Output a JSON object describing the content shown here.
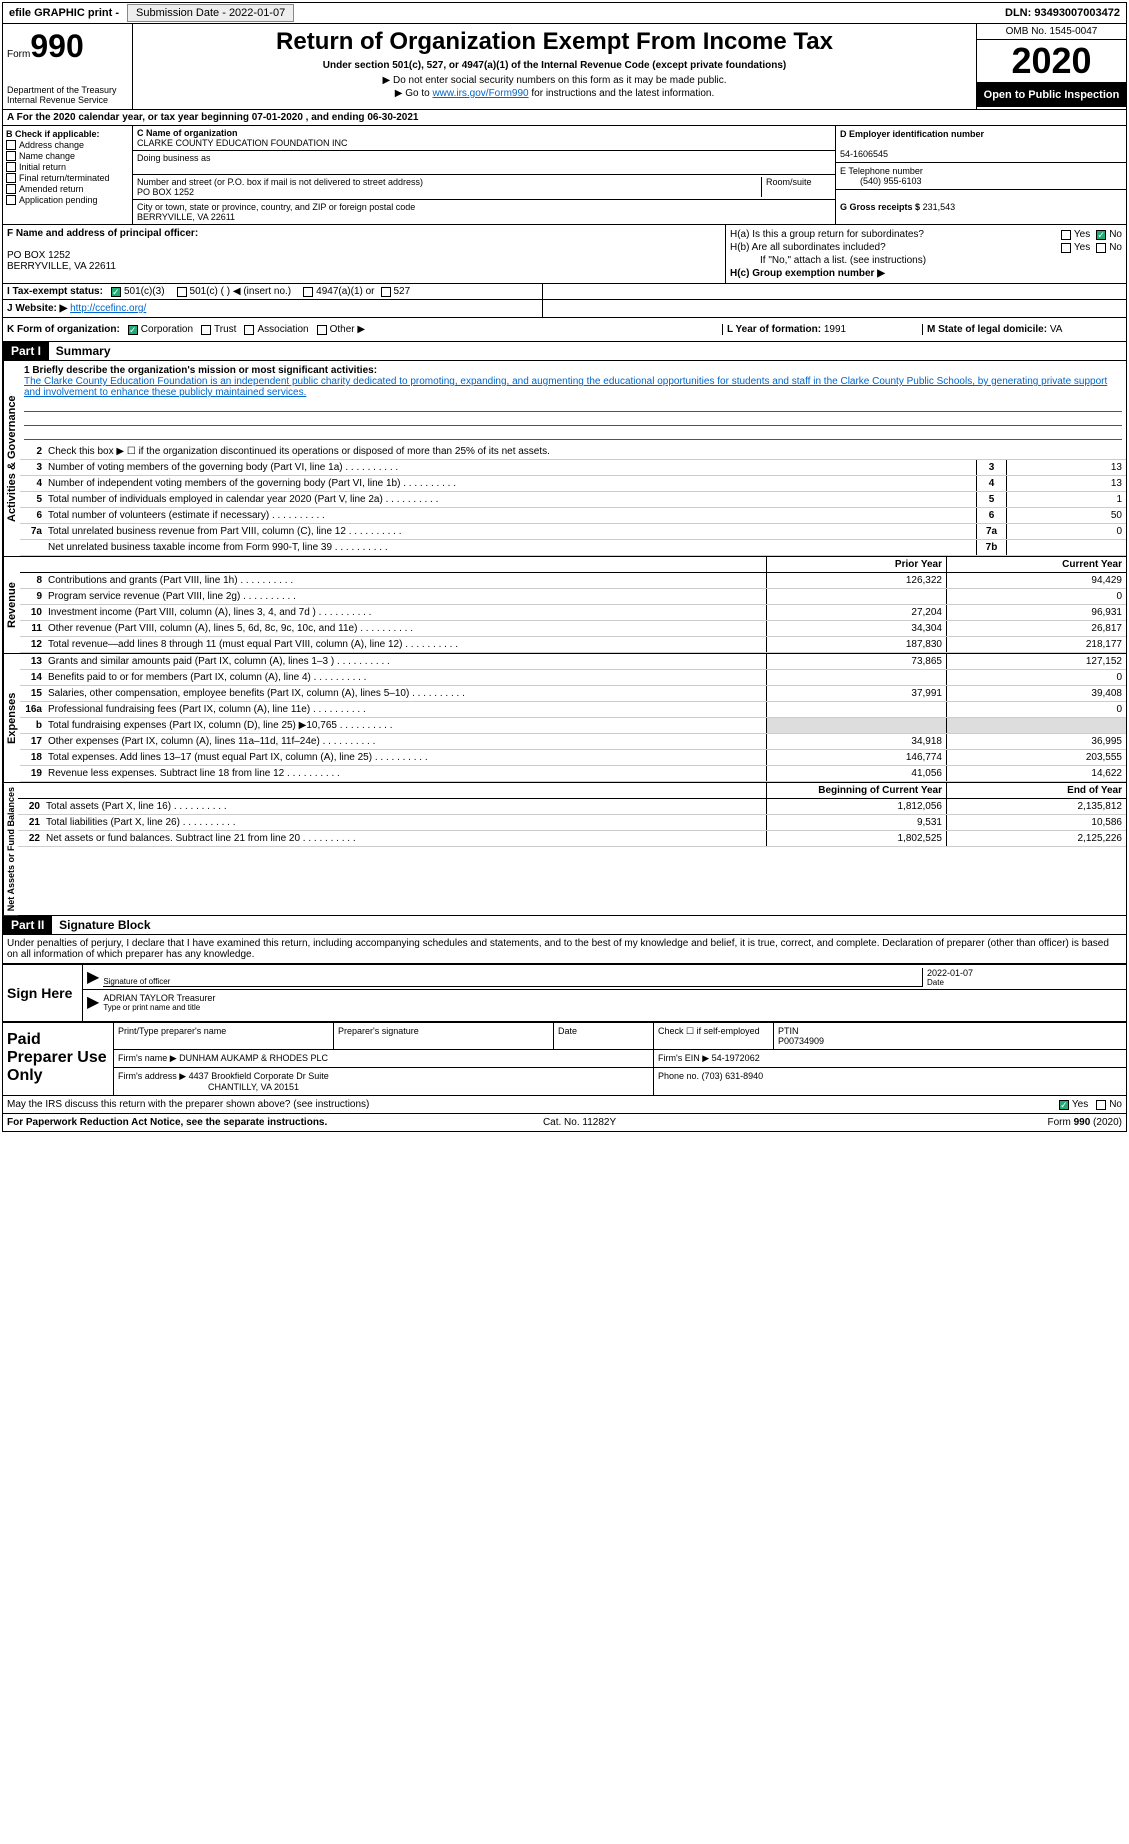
{
  "topbar": {
    "efile": "efile GRAPHIC print -",
    "submission": "Submission Date - 2022-01-07",
    "dln": "DLN: 93493007003472"
  },
  "header": {
    "form_label": "Form",
    "form_num": "990",
    "dept": "Department of the Treasury Internal Revenue Service",
    "title": "Return of Organization Exempt From Income Tax",
    "subtitle": "Under section 501(c), 527, or 4947(a)(1) of the Internal Revenue Code (except private foundations)",
    "note1": "▶ Do not enter social security numbers on this form as it may be made public.",
    "note2_pre": "▶ Go to ",
    "note2_link": "www.irs.gov/Form990",
    "note2_post": " for instructions and the latest information.",
    "omb": "OMB No. 1545-0047",
    "year": "2020",
    "open": "Open to Public Inspection"
  },
  "section_a": "A For the 2020 calendar year, or tax year beginning 07-01-2020    , and ending 06-30-2021",
  "block_b": {
    "label": "B Check if applicable:",
    "addr_change": "Address change",
    "name_change": "Name change",
    "initial": "Initial return",
    "final": "Final return/terminated",
    "amended": "Amended return",
    "app_pending": "Application pending"
  },
  "block_c": {
    "c_label": "C Name of organization",
    "org_name": "CLARKE COUNTY EDUCATION FOUNDATION INC",
    "dba": "Doing business as",
    "addr_label": "Number and street (or P.O. box if mail is not delivered to street address)",
    "room": "Room/suite",
    "addr": "PO BOX 1252",
    "city_label": "City or town, state or province, country, and ZIP or foreign postal code",
    "city": "BERRYVILLE, VA  22611"
  },
  "block_d": {
    "d_label": "D Employer identification number",
    "ein": "54-1606545",
    "e_label": "E Telephone number",
    "phone": "(540) 955-6103",
    "g_label": "G Gross receipts $",
    "gross": "231,543"
  },
  "block_f": {
    "f_label": "F  Name and address of principal officer:",
    "addr1": "PO BOX 1252",
    "addr2": "BERRYVILLE, VA  22611"
  },
  "block_h": {
    "ha_label": "H(a)  Is this a group return for subordinates?",
    "hb_label": "H(b)  Are all subordinates included?",
    "hb_note": "If \"No,\" attach a list. (see instructions)",
    "hc_label": "H(c)  Group exemption number ▶",
    "yes": "Yes",
    "no": "No"
  },
  "block_i": {
    "label": "I    Tax-exempt status:",
    "opt1": "501(c)(3)",
    "opt2": "501(c) (  ) ◀ (insert no.)",
    "opt3": "4947(a)(1) or",
    "opt4": "527"
  },
  "block_j": {
    "label": "J   Website: ▶",
    "url": "http://ccefinc.org/"
  },
  "block_k": {
    "label": "K Form of organization:",
    "corp": "Corporation",
    "trust": "Trust",
    "assoc": "Association",
    "other": "Other ▶",
    "l_label": "L Year of formation:",
    "l_val": "1991",
    "m_label": "M State of legal domicile:",
    "m_val": "VA"
  },
  "part1": {
    "hdr": "Part I",
    "title": "Summary",
    "line1_label": "1  Briefly describe the organization's mission or most significant activities:",
    "mission": "The Clarke County Education Foundation is an independent public charity dedicated to promoting, expanding, and augmenting the educational opportunities for students and staff in the Clarke County Public Schools, by generating private support and involvement to enhance these publicly maintained services.",
    "line2": "Check this box ▶ ☐ if the organization discontinued its operations or disposed of more than 25% of its net assets.",
    "vert_ag": "Activities & Governance",
    "vert_rev": "Revenue",
    "vert_exp": "Expenses",
    "vert_net": "Net Assets or Fund Balances",
    "lines_ag": [
      {
        "n": "3",
        "d": "Number of voting members of the governing body (Part VI, line 1a)",
        "b": "3",
        "v": "13"
      },
      {
        "n": "4",
        "d": "Number of independent voting members of the governing body (Part VI, line 1b)",
        "b": "4",
        "v": "13"
      },
      {
        "n": "5",
        "d": "Total number of individuals employed in calendar year 2020 (Part V, line 2a)",
        "b": "5",
        "v": "1"
      },
      {
        "n": "6",
        "d": "Total number of volunteers (estimate if necessary)",
        "b": "6",
        "v": "50"
      },
      {
        "n": "7a",
        "d": "Total unrelated business revenue from Part VIII, column (C), line 12",
        "b": "7a",
        "v": "0"
      },
      {
        "n": "",
        "d": "Net unrelated business taxable income from Form 990-T, line 39",
        "b": "7b",
        "v": ""
      }
    ],
    "prior_hdr": "Prior Year",
    "curr_hdr": "Current Year",
    "lines_rev": [
      {
        "n": "8",
        "d": "Contributions and grants (Part VIII, line 1h)",
        "p": "126,322",
        "c": "94,429"
      },
      {
        "n": "9",
        "d": "Program service revenue (Part VIII, line 2g)",
        "p": "",
        "c": "0"
      },
      {
        "n": "10",
        "d": "Investment income (Part VIII, column (A), lines 3, 4, and 7d )",
        "p": "27,204",
        "c": "96,931"
      },
      {
        "n": "11",
        "d": "Other revenue (Part VIII, column (A), lines 5, 6d, 8c, 9c, 10c, and 11e)",
        "p": "34,304",
        "c": "26,817"
      },
      {
        "n": "12",
        "d": "Total revenue—add lines 8 through 11 (must equal Part VIII, column (A), line 12)",
        "p": "187,830",
        "c": "218,177"
      }
    ],
    "lines_exp": [
      {
        "n": "13",
        "d": "Grants and similar amounts paid (Part IX, column (A), lines 1–3 )",
        "p": "73,865",
        "c": "127,152"
      },
      {
        "n": "14",
        "d": "Benefits paid to or for members (Part IX, column (A), line 4)",
        "p": "",
        "c": "0"
      },
      {
        "n": "15",
        "d": "Salaries, other compensation, employee benefits (Part IX, column (A), lines 5–10)",
        "p": "37,991",
        "c": "39,408"
      },
      {
        "n": "16a",
        "d": "Professional fundraising fees (Part IX, column (A), line 11e)",
        "p": "",
        "c": "0"
      },
      {
        "n": "b",
        "d": "Total fundraising expenses (Part IX, column (D), line 25) ▶10,765",
        "p": "shade",
        "c": "shade"
      },
      {
        "n": "17",
        "d": "Other expenses (Part IX, column (A), lines 11a–11d, 11f–24e)",
        "p": "34,918",
        "c": "36,995"
      },
      {
        "n": "18",
        "d": "Total expenses. Add lines 13–17 (must equal Part IX, column (A), line 25)",
        "p": "146,774",
        "c": "203,555"
      },
      {
        "n": "19",
        "d": "Revenue less expenses. Subtract line 18 from line 12",
        "p": "41,056",
        "c": "14,622"
      }
    ],
    "beg_hdr": "Beginning of Current Year",
    "end_hdr": "End of Year",
    "lines_net": [
      {
        "n": "20",
        "d": "Total assets (Part X, line 16)",
        "p": "1,812,056",
        "c": "2,135,812"
      },
      {
        "n": "21",
        "d": "Total liabilities (Part X, line 26)",
        "p": "9,531",
        "c": "10,586"
      },
      {
        "n": "22",
        "d": "Net assets or fund balances. Subtract line 21 from line 20",
        "p": "1,802,525",
        "c": "2,125,226"
      }
    ]
  },
  "part2": {
    "hdr": "Part II",
    "title": "Signature Block",
    "decl": "Under penalties of perjury, I declare that I have examined this return, including accompanying schedules and statements, and to the best of my knowledge and belief, it is true, correct, and complete. Declaration of preparer (other than officer) is based on all information of which preparer has any knowledge."
  },
  "sign": {
    "left": "Sign Here",
    "sig_label": "Signature of officer",
    "date": "2022-01-07",
    "date_label": "Date",
    "name": "ADRIAN TAYLOR Treasurer",
    "name_label": "Type or print name and title"
  },
  "paid": {
    "left": "Paid Preparer Use Only",
    "h1": "Print/Type preparer's name",
    "h2": "Preparer's signature",
    "h3": "Date",
    "h4": "Check ☐ if self-employed",
    "h5": "PTIN",
    "ptin": "P00734909",
    "firm_name_lbl": "Firm's name    ▶",
    "firm_name": "DUNHAM AUKAMP & RHODES PLC",
    "firm_ein_lbl": "Firm's EIN ▶",
    "firm_ein": "54-1972062",
    "firm_addr_lbl": "Firm's address ▶",
    "firm_addr1": "4437 Brookfield Corporate Dr Suite",
    "firm_addr2": "CHANTILLY, VA  20151",
    "phone_lbl": "Phone no.",
    "phone": "(703) 631-8940"
  },
  "discuss": {
    "q": "May the IRS discuss this return with the preparer shown above? (see instructions)",
    "yes": "Yes",
    "no": "No"
  },
  "footer": {
    "left": "For Paperwork Reduction Act Notice, see the separate instructions.",
    "mid": "Cat. No. 11282Y",
    "right_pre": "Form ",
    "right_bold": "990",
    "right_post": " (2020)"
  }
}
